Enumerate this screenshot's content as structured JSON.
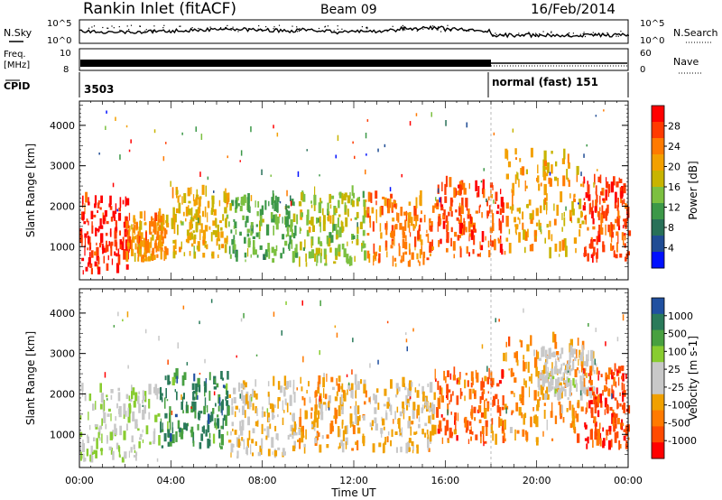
{
  "header": {
    "station": "Rankin Inlet (fitACF)",
    "beam": "Beam 09",
    "date": "16/Feb/2014"
  },
  "strip_labels": {
    "nsky": "N.Sky",
    "nsearch": "N.Search",
    "freq_line1": "Freq.",
    "freq_line2": "[MHz]",
    "nave": "Nave",
    "cpid": "CPID",
    "nsky_ticks": [
      "10^5",
      "10^0"
    ],
    "nsearch_ticks": [
      "10^5",
      "10^0"
    ],
    "freq_ticks": [
      "10",
      "8"
    ],
    "nave_ticks": [
      "60",
      "0"
    ]
  },
  "cpid_segments": [
    {
      "start": "00:00",
      "label": "3503"
    },
    {
      "start": "18:00",
      "label": "normal (fast) 151"
    }
  ],
  "x_axis": {
    "label": "Time UT",
    "ticks": [
      "00:00",
      "04:00",
      "08:00",
      "12:00",
      "16:00",
      "20:00",
      "00:00"
    ],
    "range_hours": [
      0,
      24
    ]
  },
  "panels": [
    {
      "id": "power",
      "ylabel": "Slant Range [km]",
      "yticks": [
        "1000",
        "2000",
        "3000",
        "4000"
      ],
      "colorbar_label": "Power [dB]",
      "colorbar_ticks": [
        "28",
        "24",
        "20",
        "16",
        "12",
        "8",
        "4"
      ],
      "colorbar_colors": [
        "#ff0000",
        "#ff3a00",
        "#ff7a00",
        "#f3a000",
        "#c8b400",
        "#7cc040",
        "#3c9848",
        "#287058",
        "#204c94",
        "#0010ff"
      ]
    },
    {
      "id": "velocity",
      "ylabel": "Slant Range [km]",
      "yticks": [
        "1000",
        "2000",
        "3000",
        "4000"
      ],
      "colorbar_label": "Velocity [m s-1]",
      "colorbar_ticks": [
        "1000",
        "500",
        "100",
        "25",
        "-25",
        "-100",
        "-500",
        "-1000"
      ],
      "colorbar_colors": [
        "#2050a0",
        "#2a7a5a",
        "#48a040",
        "#88cc30",
        "#c8c8c8",
        "#c8c8c8",
        "#f0a000",
        "#ff7a00",
        "#ff4a00",
        "#ff0000"
      ]
    }
  ],
  "chart_data": [
    {
      "type": "heatmap",
      "title": "Rankin Inlet (fitACF) Beam 09 16/Feb/2014",
      "xlabel": "Time UT",
      "ylabel": "Slant Range [km]",
      "xlim_hours": [
        0,
        24
      ],
      "ylim_km": [
        180,
        4600
      ],
      "colorbar": "Power [dB]",
      "clim": [
        0,
        30
      ],
      "regions": [
        {
          "t0": 0.0,
          "t1": 2.2,
          "r0": 300,
          "r1": 2100,
          "value": 27
        },
        {
          "t0": 2.0,
          "t1": 3.8,
          "r0": 600,
          "r1": 1700,
          "value": 21
        },
        {
          "t0": 4.0,
          "t1": 6.5,
          "r0": 700,
          "r1": 2300,
          "value": 18
        },
        {
          "t0": 6.5,
          "t1": 9.5,
          "r0": 600,
          "r1": 2200,
          "value": 12
        },
        {
          "t0": 9.5,
          "t1": 12.5,
          "r0": 500,
          "r1": 2300,
          "value": 15
        },
        {
          "t0": 12.5,
          "t1": 15.5,
          "r0": 500,
          "r1": 2200,
          "value": 22
        },
        {
          "t0": 15.5,
          "t1": 18.5,
          "r0": 700,
          "r1": 2500,
          "value": 25
        },
        {
          "t0": 18.5,
          "t1": 22.0,
          "r0": 700,
          "r1": 3300,
          "value": 19
        },
        {
          "t0": 22.0,
          "t1": 24.0,
          "r0": 600,
          "r1": 2600,
          "value": 26
        }
      ]
    },
    {
      "type": "heatmap",
      "title": "Rankin Inlet (fitACF) Beam 09 16/Feb/2014",
      "xlabel": "Time UT",
      "ylabel": "Slant Range [km]",
      "xlim_hours": [
        0,
        24
      ],
      "ylim_km": [
        180,
        4600
      ],
      "colorbar": "Velocity [m s-1]",
      "clim": [
        -1000,
        1000
      ],
      "regions": [
        {
          "t0": 0.0,
          "t1": 3.5,
          "r0": 300,
          "r1": 2100,
          "value": 150
        },
        {
          "t0": 3.5,
          "t1": 6.5,
          "r0": 600,
          "r1": 2400,
          "value": 600
        },
        {
          "t0": 6.5,
          "t1": 9.5,
          "r0": 400,
          "r1": 2200,
          "value": -150
        },
        {
          "t0": 9.5,
          "t1": 12.5,
          "r0": 500,
          "r1": 2300,
          "value": -300
        },
        {
          "t0": 12.5,
          "t1": 15.5,
          "r0": 500,
          "r1": 2200,
          "value": -200
        },
        {
          "t0": 15.5,
          "t1": 18.5,
          "r0": 700,
          "r1": 2500,
          "value": -600
        },
        {
          "t0": 18.5,
          "t1": 22.0,
          "r0": 700,
          "r1": 3300,
          "value": -400
        },
        {
          "t0": 20.0,
          "t1": 22.5,
          "r0": 1800,
          "r1": 3000,
          "value": 0
        },
        {
          "t0": 22.0,
          "t1": 24.0,
          "r0": 600,
          "r1": 2600,
          "value": -700
        }
      ]
    }
  ]
}
